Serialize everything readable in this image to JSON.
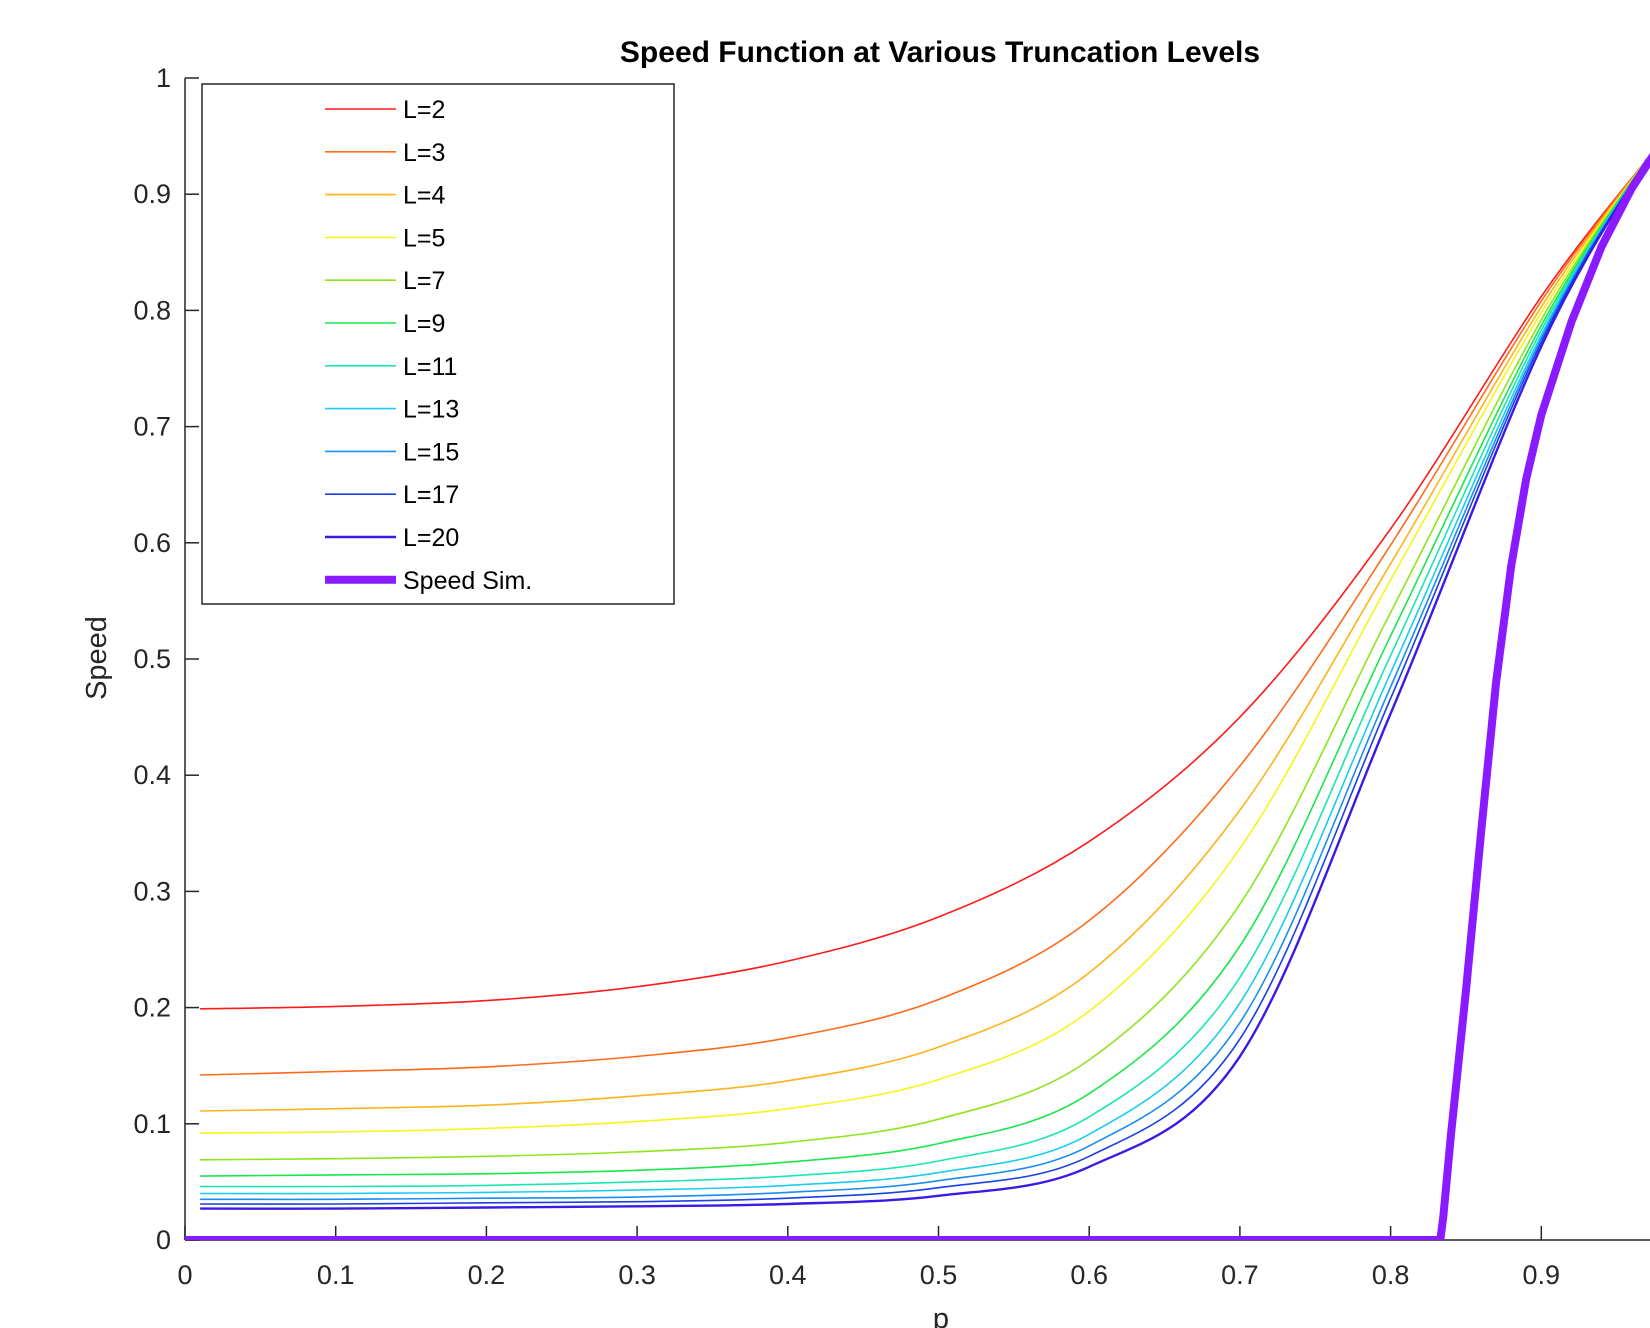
{
  "chart_data": {
    "type": "line",
    "title": "Speed Function at Various Truncation Levels",
    "xlabel": "p",
    "ylabel": "Speed",
    "xlim": [
      0,
      1
    ],
    "ylim": [
      0,
      1
    ],
    "xticks": [
      "0",
      "0.1",
      "0.2",
      "0.3",
      "0.4",
      "0.5",
      "0.6",
      "0.7",
      "0.8",
      "0.9"
    ],
    "yticks": [
      "0",
      "0.1",
      "0.2",
      "0.3",
      "0.4",
      "0.5",
      "0.6",
      "0.7",
      "0.8",
      "0.9",
      "1"
    ],
    "grid": false,
    "legend": {
      "location": "top-left",
      "box": true
    },
    "series": [
      {
        "name": "L=2",
        "color": "#ff1a1a",
        "weight": "thin",
        "x": [
          0.01,
          0.1,
          0.2,
          0.3,
          0.4,
          0.5,
          0.6,
          0.7,
          0.8,
          0.9,
          0.97
        ],
        "y": [
          0.199,
          0.201,
          0.206,
          0.218,
          0.24,
          0.278,
          0.343,
          0.45,
          0.612,
          0.812,
          0.93
        ]
      },
      {
        "name": "L=3",
        "color": "#ff6a1a",
        "weight": "thin",
        "x": [
          0.01,
          0.1,
          0.2,
          0.3,
          0.4,
          0.5,
          0.6,
          0.7,
          0.8,
          0.9,
          0.97
        ],
        "y": [
          0.142,
          0.145,
          0.149,
          0.158,
          0.174,
          0.207,
          0.275,
          0.408,
          0.598,
          0.808,
          0.93
        ]
      },
      {
        "name": "L=4",
        "color": "#ffb31a",
        "weight": "thin",
        "x": [
          0.01,
          0.1,
          0.2,
          0.3,
          0.4,
          0.5,
          0.6,
          0.7,
          0.8,
          0.9,
          0.97
        ],
        "y": [
          0.111,
          0.113,
          0.116,
          0.124,
          0.137,
          0.166,
          0.23,
          0.37,
          0.582,
          0.803,
          0.93
        ]
      },
      {
        "name": "L=5",
        "color": "#f5f51a",
        "weight": "thin",
        "x": [
          0.01,
          0.1,
          0.2,
          0.3,
          0.4,
          0.5,
          0.6,
          0.7,
          0.8,
          0.9,
          0.97
        ],
        "y": [
          0.092,
          0.093,
          0.096,
          0.102,
          0.113,
          0.138,
          0.197,
          0.337,
          0.568,
          0.798,
          0.93
        ]
      },
      {
        "name": "L=7",
        "color": "#8ce61a",
        "weight": "thin",
        "x": [
          0.01,
          0.1,
          0.2,
          0.3,
          0.4,
          0.5,
          0.6,
          0.7,
          0.8,
          0.9,
          0.97
        ],
        "y": [
          0.069,
          0.07,
          0.072,
          0.076,
          0.084,
          0.104,
          0.155,
          0.289,
          0.54,
          0.792,
          0.93
        ]
      },
      {
        "name": "L=9",
        "color": "#1ae64d",
        "weight": "thin",
        "x": [
          0.01,
          0.1,
          0.2,
          0.3,
          0.4,
          0.5,
          0.6,
          0.7,
          0.8,
          0.9,
          0.97
        ],
        "y": [
          0.055,
          0.056,
          0.057,
          0.06,
          0.067,
          0.083,
          0.126,
          0.253,
          0.52,
          0.787,
          0.93
        ]
      },
      {
        "name": "L=11",
        "color": "#1ae6b3",
        "weight": "thin",
        "x": [
          0.01,
          0.1,
          0.2,
          0.3,
          0.4,
          0.5,
          0.6,
          0.7,
          0.8,
          0.9,
          0.97
        ],
        "y": [
          0.046,
          0.046,
          0.047,
          0.05,
          0.055,
          0.068,
          0.106,
          0.226,
          0.503,
          0.783,
          0.93
        ]
      },
      {
        "name": "L=13",
        "color": "#1accf2",
        "weight": "thin",
        "x": [
          0.01,
          0.1,
          0.2,
          0.3,
          0.4,
          0.5,
          0.6,
          0.7,
          0.8,
          0.9,
          0.97
        ],
        "y": [
          0.04,
          0.04,
          0.041,
          0.043,
          0.047,
          0.058,
          0.091,
          0.204,
          0.488,
          0.779,
          0.93
        ]
      },
      {
        "name": "L=15",
        "color": "#1a8cf2",
        "weight": "thin",
        "x": [
          0.01,
          0.1,
          0.2,
          0.3,
          0.4,
          0.5,
          0.6,
          0.7,
          0.8,
          0.9,
          0.97
        ],
        "y": [
          0.035,
          0.035,
          0.036,
          0.037,
          0.041,
          0.051,
          0.081,
          0.187,
          0.476,
          0.776,
          0.93
        ]
      },
      {
        "name": "L=17",
        "color": "#1a40e6",
        "weight": "thin",
        "x": [
          0.01,
          0.1,
          0.2,
          0.3,
          0.4,
          0.5,
          0.6,
          0.7,
          0.8,
          0.9,
          0.97
        ],
        "y": [
          0.031,
          0.031,
          0.032,
          0.033,
          0.036,
          0.045,
          0.072,
          0.173,
          0.466,
          0.773,
          0.93
        ]
      },
      {
        "name": "L=20",
        "color": "#3a1ae6",
        "weight": "medium",
        "x": [
          0.01,
          0.1,
          0.2,
          0.3,
          0.4,
          0.5,
          0.6,
          0.7,
          0.8,
          0.9,
          0.97
        ],
        "y": [
          0.027,
          0.027,
          0.028,
          0.029,
          0.031,
          0.038,
          0.063,
          0.158,
          0.453,
          0.769,
          0.93
        ]
      },
      {
        "name": "Speed Sim.",
        "color": "#8a1aff",
        "weight": "thick",
        "x": [
          0,
          0.2,
          0.4,
          0.6,
          0.8,
          0.833,
          0.835,
          0.84,
          0.85,
          0.86,
          0.87,
          0.88,
          0.89,
          0.9,
          0.92,
          0.94,
          0.96,
          0.98,
          1.0
        ],
        "y": [
          0,
          0,
          0,
          0,
          0,
          0,
          0.02,
          0.09,
          0.215,
          0.35,
          0.48,
          0.58,
          0.655,
          0.71,
          0.79,
          0.855,
          0.905,
          0.945,
          0.985
        ]
      }
    ]
  }
}
